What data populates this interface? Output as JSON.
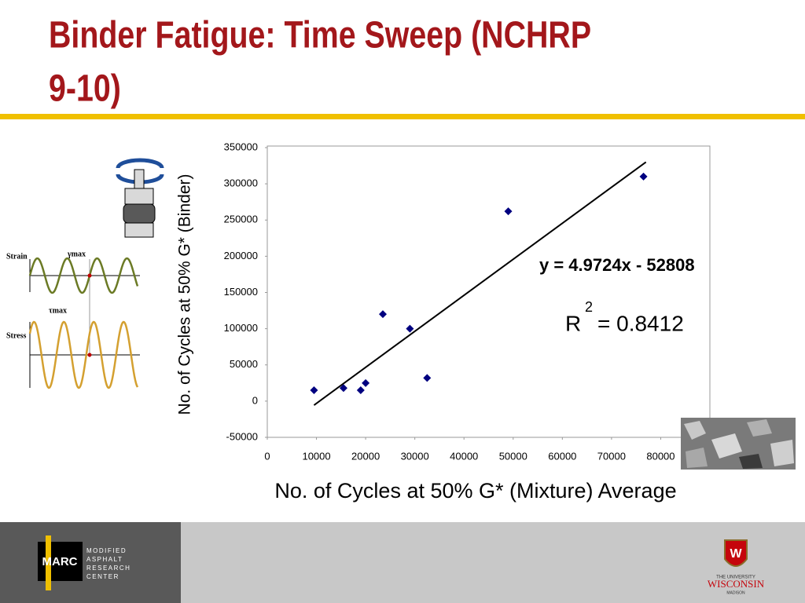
{
  "slide": {
    "title_line1": "Binder Fatigue: Time Sweep (NCHRP",
    "title_line2": "9-10)",
    "diagram": {
      "strain": "Strain",
      "gamma_max": "γmax",
      "stress": "Stress",
      "tau_max": "τmax"
    },
    "footer": {
      "logo": "MARC",
      "org": [
        "MODIFIED",
        "ASPHALT",
        "RESEARCH",
        "CENTER"
      ],
      "univ_top": "THE UNIVERSITY",
      "univ_name": "WISCONSIN",
      "univ_city": "MADISON"
    }
  },
  "chart_data": {
    "type": "scatter",
    "x_label": "No. of Cycles at 50% G* (Mixture) Average",
    "y_label": "No. of Cycles at 50% G* (Binder)",
    "x": [
      9500,
      15500,
      19000,
      20000,
      23500,
      29000,
      32500,
      49000,
      76500
    ],
    "values": [
      15000,
      18000,
      15000,
      25000,
      120000,
      100000,
      32000,
      262000,
      310000
    ],
    "color": "#000080",
    "trendline": {
      "x": [
        9500,
        77000
      ],
      "values": [
        -5570,
        330070
      ],
      "color": "#000000"
    },
    "equation": "y = 4.9724x - 52808",
    "r2_base": "R",
    "r2_sup": "2",
    "r2_value": "= 0.8412",
    "xlim": [
      0,
      90000
    ],
    "xticks": [
      0,
      10000,
      20000,
      30000,
      40000,
      50000,
      60000,
      70000,
      80000
    ],
    "ylim": [
      -50000,
      350000
    ],
    "yticks": [
      -50000,
      0,
      50000,
      100000,
      150000,
      200000,
      250000,
      300000,
      350000
    ]
  }
}
